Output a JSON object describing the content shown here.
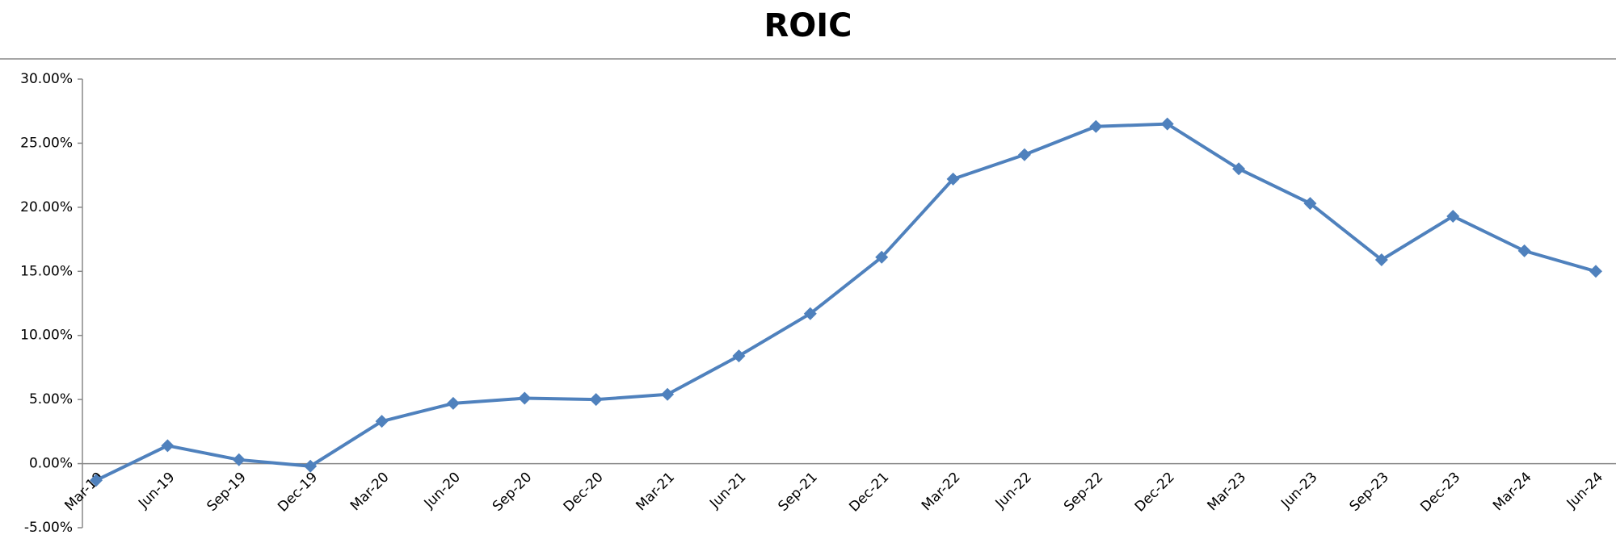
{
  "chart_data": {
    "type": "line",
    "title": "ROIC",
    "categories": [
      "Mar-19",
      "Jun-19",
      "Sep-19",
      "Dec-19",
      "Mar-20",
      "Jun-20",
      "Sep-20",
      "Dec-20",
      "Mar-21",
      "Jun-21",
      "Sep-21",
      "Dec-21",
      "Mar-22",
      "Jun-22",
      "Sep-22",
      "Dec-22",
      "Mar-23",
      "Jun-23",
      "Sep-23",
      "Dec-23",
      "Mar-24",
      "Jun-24"
    ],
    "series": [
      {
        "name": "ROIC",
        "color": "#4f81bd",
        "values": [
          -1.3,
          1.4,
          0.3,
          -0.2,
          3.3,
          4.7,
          5.1,
          5.0,
          5.4,
          8.4,
          11.7,
          16.1,
          22.2,
          24.1,
          26.3,
          26.5,
          23.0,
          20.3,
          15.9,
          19.3,
          16.6,
          15.0
        ]
      }
    ],
    "ylim": [
      -5,
      30
    ],
    "yticks": [
      {
        "value": -5,
        "label": "-5.00%"
      },
      {
        "value": 0,
        "label": "0.00%"
      },
      {
        "value": 5,
        "label": "5.00%"
      },
      {
        "value": 10,
        "label": "10.00%"
      },
      {
        "value": 15,
        "label": "15.00%"
      },
      {
        "value": 20,
        "label": "20.00%"
      },
      {
        "value": 25,
        "label": "25.00%"
      },
      {
        "value": 30,
        "label": "30.00%"
      }
    ]
  }
}
